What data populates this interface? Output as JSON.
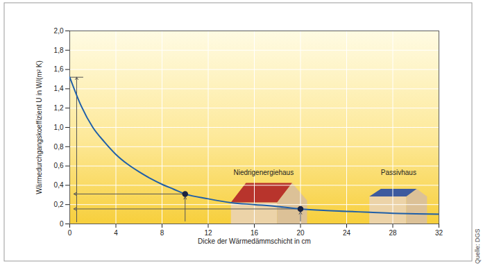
{
  "chart_data": {
    "type": "line",
    "x_label": "Dicke der Wärmedämmschicht in cm",
    "y_label": "Wärmedurchgangskoeffizient U in W/(m² K)",
    "x": [
      0,
      1,
      2,
      3,
      4,
      5,
      6,
      7,
      8,
      9,
      10,
      12,
      14,
      16,
      18,
      20,
      22,
      24,
      26,
      28,
      30,
      32
    ],
    "values": [
      1.52,
      1.22,
      1.0,
      0.85,
      0.72,
      0.62,
      0.54,
      0.47,
      0.41,
      0.36,
      0.31,
      0.26,
      0.22,
      0.2,
      0.18,
      0.155,
      0.14,
      0.13,
      0.12,
      0.11,
      0.105,
      0.1
    ],
    "color": "#1f5fa8",
    "markers": {
      "x": [
        10,
        20
      ],
      "values": [
        0.31,
        0.155
      ]
    },
    "annotations": [
      "Niedrigenergiehaus",
      "Passivhaus"
    ],
    "source": "Quelle: DGS",
    "xlim": [
      0,
      32
    ],
    "xticks": [
      0,
      4,
      8,
      12,
      16,
      20,
      24,
      28,
      32
    ],
    "ylim": [
      0,
      2
    ],
    "yticks": [
      0,
      {
        "value": 0.2,
        "label": "0,2"
      },
      {
        "value": 0.4,
        "label": "0,4"
      },
      {
        "value": 0.6,
        "label": "0,6"
      },
      {
        "value": 0.8,
        "label": "0,8"
      },
      {
        "value": 1.0,
        "label": "1,0"
      },
      {
        "value": 1.2,
        "label": "1,2"
      },
      {
        "value": 1.4,
        "label": "1,4"
      },
      {
        "value": 1.6,
        "label": "1,6"
      },
      {
        "value": 1.8,
        "label": "1,8"
      },
      {
        "value": 2.0,
        "label": "2,0"
      }
    ],
    "grid": true
  }
}
